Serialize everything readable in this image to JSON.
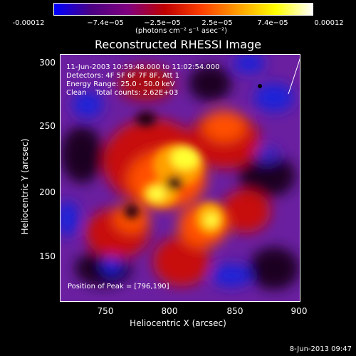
{
  "colorbar": {
    "ticks": [
      "-0.00012",
      "−7.4e−05",
      "−2.5e−05",
      "2.5e−05",
      "7.4e−05",
      "0.00012"
    ],
    "units": "(photons cm⁻² s⁻¹ asec⁻²)",
    "colors": [
      "#0000ff",
      "#4b0082",
      "#800080",
      "#c00000",
      "#ff4000",
      "#ffa000",
      "#ffff00",
      "#ffffff"
    ]
  },
  "title": "Reconstructed RHESSI Image",
  "info": {
    "time": "11-Jun-2003 10:59:48.000 to 11:02:54.000",
    "detectors": "Detectors: 4F 5F 6F 7F 8F, Att 1",
    "energy": "Energy Range: 25.0 - 50.0 keV",
    "clean": "Clean    Total counts: 2.62E+03",
    "peak": "Position of Peak = [796,190]"
  },
  "axes": {
    "ylabel": "Heliocentric Y (arcsec)",
    "xlabel": "Heliocentric X (arcsec)",
    "yticks": [
      "300",
      "250",
      "200",
      "150"
    ],
    "xticks": [
      "750",
      "800",
      "850",
      "900"
    ]
  },
  "footer_date": "8-Jun-2013 09:47"
}
